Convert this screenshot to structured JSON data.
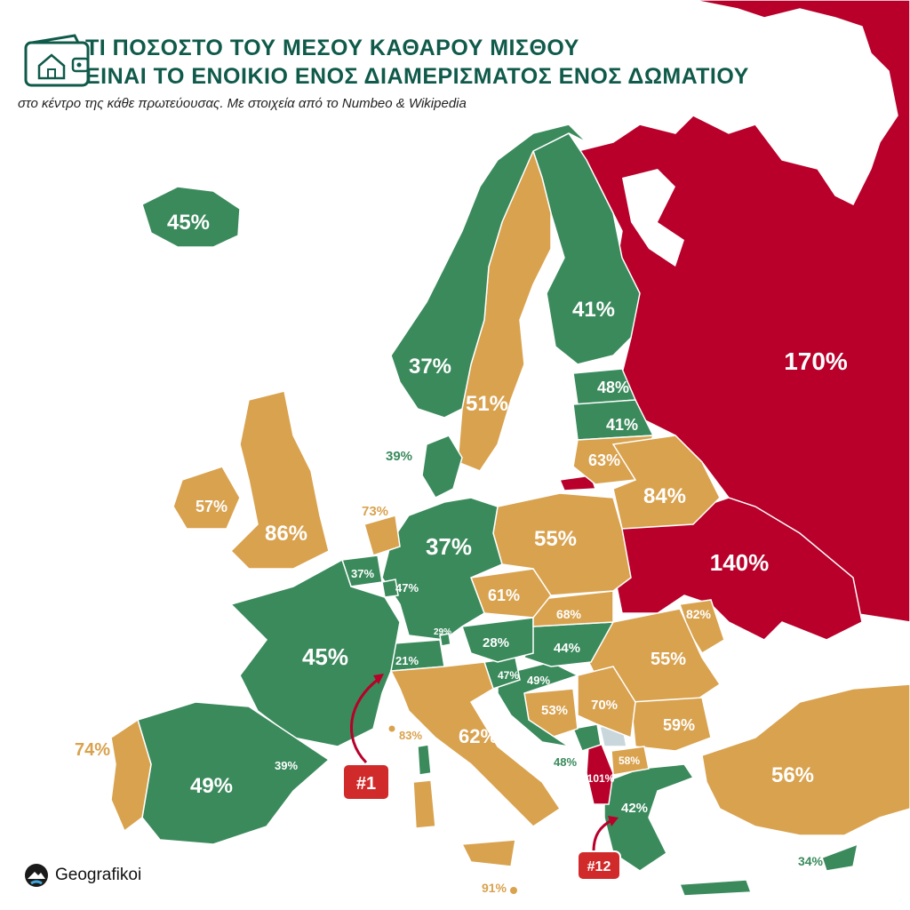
{
  "title": {
    "line1": "ΤΙ ΠΟΣΟΣΤΟ ΤΟΥ ΜΕΣΟΥ ΚΑΘΑΡΟΥ ΜΙΣΘΟΥ",
    "line2": "ΕΙΝΑΙ ΤΟ ΕΝΟΙΚΙΟ ΕΝΟΣ ΔΙΑΜΕΡΙΣΜΑΤΟΣ ΕΝΟΣ ΔΩΜΑΤΙΟΥ"
  },
  "subtitle": "στο κέντρο της κάθε πρωτεύουσας. Με στοιχεία από το Numbeo & Wikipedia",
  "brand": {
    "name": "Geografikoi"
  },
  "colors": {
    "green": "#3a8a5c",
    "orange": "#d9a24e",
    "red": "#b8002a",
    "title": "#0f5a4a",
    "border": "#ffffff",
    "nodata": "#c9d7dc"
  },
  "badges": {
    "first": "#1",
    "twelfth": "#12"
  },
  "countries": [
    {
      "name": "Iceland",
      "label": "45%"
    },
    {
      "name": "Norway",
      "label": "37%"
    },
    {
      "name": "Sweden",
      "label": "51%"
    },
    {
      "name": "Finland",
      "label": "41%"
    },
    {
      "name": "Russia",
      "label": "170%"
    },
    {
      "name": "Estonia",
      "label": "48%"
    },
    {
      "name": "Latvia",
      "label": "41%"
    },
    {
      "name": "Lithuania",
      "label": "63%"
    },
    {
      "name": "Belarus",
      "label": "84%"
    },
    {
      "name": "Ukraine",
      "label": "140%"
    },
    {
      "name": "Moldova",
      "label": "82%"
    },
    {
      "name": "Denmark",
      "label": "39%"
    },
    {
      "name": "Ireland",
      "label": "57%"
    },
    {
      "name": "United Kingdom",
      "label": "86%"
    },
    {
      "name": "Netherlands",
      "label": "73%"
    },
    {
      "name": "Belgium",
      "label": "37%"
    },
    {
      "name": "Luxembourg",
      "label": "47%"
    },
    {
      "name": "Germany",
      "label": "37%"
    },
    {
      "name": "Poland",
      "label": "55%"
    },
    {
      "name": "Czechia",
      "label": "61%"
    },
    {
      "name": "Slovakia",
      "label": "68%"
    },
    {
      "name": "Liechtenstein",
      "label": "29%"
    },
    {
      "name": "Switzerland",
      "label": "21%"
    },
    {
      "name": "Austria",
      "label": "28%"
    },
    {
      "name": "Hungary",
      "label": "44%"
    },
    {
      "name": "Romania",
      "label": "55%"
    },
    {
      "name": "France",
      "label": "45%"
    },
    {
      "name": "Slovenia",
      "label": "47%"
    },
    {
      "name": "Croatia",
      "label": "49%"
    },
    {
      "name": "Bosnia",
      "label": "53%"
    },
    {
      "name": "Serbia",
      "label": "70%"
    },
    {
      "name": "Bulgaria",
      "label": "59%"
    },
    {
      "name": "Portugal",
      "label": "74%"
    },
    {
      "name": "Spain",
      "label": "49%"
    },
    {
      "name": "Andorra",
      "label": "39%"
    },
    {
      "name": "Monaco",
      "label": "83%"
    },
    {
      "name": "Italy",
      "label": "62%"
    },
    {
      "name": "Montenegro",
      "label": "48%"
    },
    {
      "name": "Albania",
      "label": "101%"
    },
    {
      "name": "North Macedonia",
      "label": "58%"
    },
    {
      "name": "Greece",
      "label": "42%"
    },
    {
      "name": "Turkey",
      "label": "56%"
    },
    {
      "name": "Malta",
      "label": "91%"
    },
    {
      "name": "Cyprus",
      "label": "34%"
    }
  ]
}
